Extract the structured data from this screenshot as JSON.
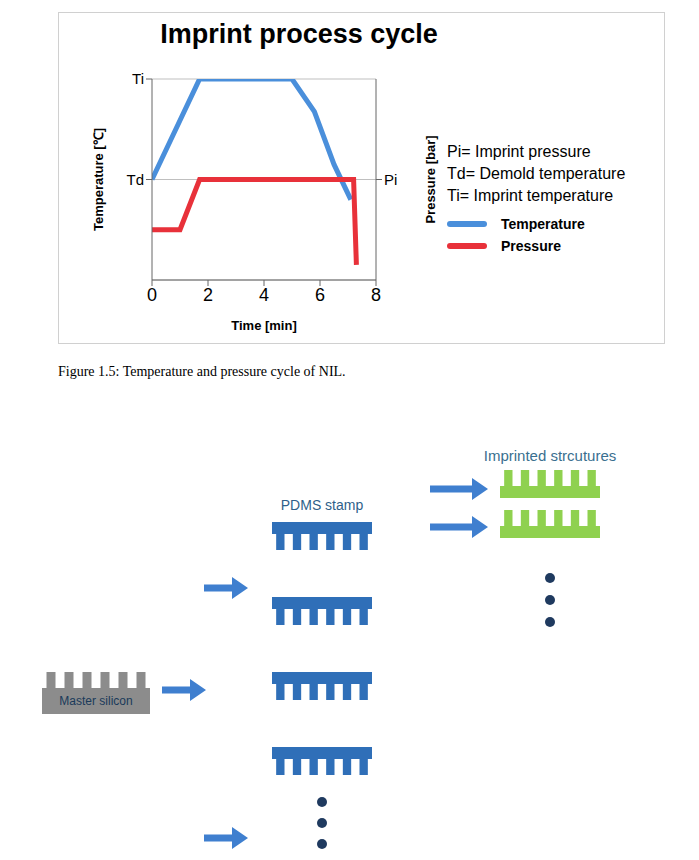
{
  "chart_data": {
    "type": "line",
    "title": "Imprint process cycle",
    "x_label": "Time [min]",
    "y_label": "Temperature [℃]",
    "y2_label": "Pressure [bar]",
    "xlim": [
      0,
      8
    ],
    "xticks": [
      0,
      2,
      4,
      6,
      8
    ],
    "ylim": [
      0,
      8
    ],
    "yticks": [
      {
        "value": 8,
        "label": "Ti"
      },
      {
        "value": 4,
        "label": "Td"
      }
    ],
    "y2lim": [
      0,
      8
    ],
    "y2ticks": [
      {
        "value": 4,
        "label": "Pi"
      }
    ],
    "grid": true,
    "legend": "right",
    "series": [
      {
        "name": "Temperature",
        "color": "#4a8fdb",
        "x": [
          0,
          1.7,
          5,
          5.8,
          6.5,
          7.1
        ],
        "values": [
          4,
          8,
          8,
          6.7,
          4.6,
          3.2
        ]
      },
      {
        "name": "Pressure",
        "color": "#e8313a",
        "axis": "y2",
        "x": [
          0,
          1,
          1.7,
          7.2,
          7.3
        ],
        "values": [
          2,
          2,
          4,
          4,
          0.6
        ]
      }
    ],
    "annotations": [
      "Pi= Imprint pressure",
      "Td= Demold temperature",
      "Ti= Imprint temperature"
    ]
  },
  "caption": "Figure 1.5: Temperature and pressure cycle of NIL.",
  "diagram": {
    "master": "Master silicon",
    "stamp": "PDMS stamp",
    "imprinted": "Imprinted strcutures"
  }
}
